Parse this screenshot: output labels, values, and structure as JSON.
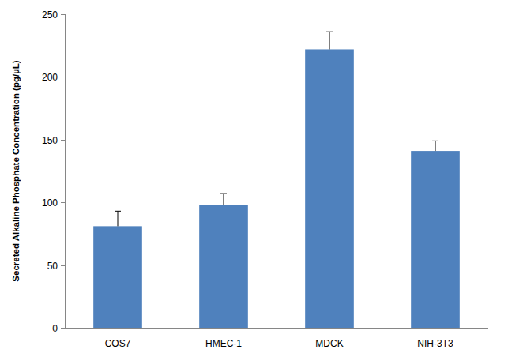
{
  "chart_data": {
    "type": "bar",
    "y_label": "Secreted Alkaline Phosphate Concentration (pg/µL)",
    "categories": [
      "COS7",
      "HMEC-1",
      "MDCK",
      "NIH-3T3"
    ],
    "values": [
      81,
      98,
      222,
      141
    ],
    "errors": [
      12,
      9,
      14,
      8
    ],
    "color": "#4f81bd",
    "ylim": [
      0,
      250
    ],
    "yticks": [
      0,
      50,
      100,
      150,
      200,
      250
    ],
    "grid": false
  }
}
